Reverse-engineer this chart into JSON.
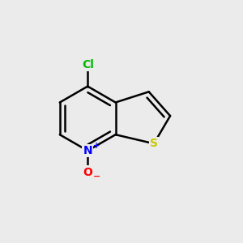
{
  "bg_color": "#ebebeb",
  "bond_color": "#000000",
  "bond_width": 1.8,
  "S_color": "#c8c800",
  "N_color": "#0000ff",
  "O_color": "#ff0000",
  "Cl_color": "#00bb00",
  "atoms": {
    "N": {
      "label": "N",
      "charge": "+"
    },
    "O": {
      "label": "O",
      "charge": "-"
    },
    "S": {
      "label": "S",
      "charge": ""
    },
    "Cl": {
      "label": "Cl",
      "charge": ""
    }
  }
}
